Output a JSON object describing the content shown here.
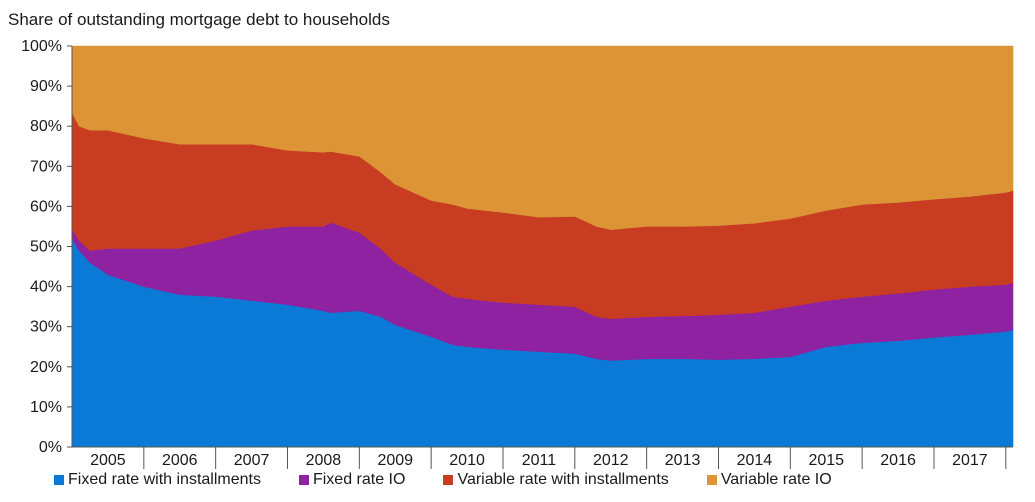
{
  "chart_data": {
    "type": "area",
    "stacked": true,
    "ylabel": "Share of outstanding mortgage debt to households",
    "xlabel": "",
    "ylim": [
      0,
      100
    ],
    "y_ticks": [
      "0%",
      "10%",
      "20%",
      "30%",
      "40%",
      "50%",
      "60%",
      "70%",
      "80%",
      "90%",
      "100%"
    ],
    "x_ticks": [
      "2005",
      "2006",
      "2007",
      "2008",
      "2009",
      "2010",
      "2011",
      "2012",
      "2013",
      "2014",
      "2015",
      "2016",
      "2017"
    ],
    "x": [
      2004.5,
      2004.6,
      2004.75,
      2005.0,
      2005.5,
      2006.0,
      2006.5,
      2007.0,
      2007.5,
      2008.0,
      2008.1,
      2008.5,
      2008.8,
      2009.0,
      2009.5,
      2009.8,
      2010.0,
      2010.5,
      2011.0,
      2011.5,
      2011.8,
      2012.0,
      2012.5,
      2013.0,
      2013.5,
      2014.0,
      2014.5,
      2015.0,
      2015.5,
      2016.0,
      2016.5,
      2017.0,
      2017.5,
      2017.6
    ],
    "grid": false,
    "legend_position": "bottom",
    "series": [
      {
        "name": "Fixed rate with installments",
        "color": "#0a7ad6",
        "values": [
          52,
          49,
          46,
          43,
          40,
          38,
          37.5,
          36.5,
          35.5,
          34,
          33.5,
          34,
          32.5,
          30.5,
          27.5,
          25.5,
          25,
          24.3,
          23.8,
          23.3,
          22,
          21.6,
          22,
          22,
          21.8,
          22,
          22.5,
          25,
          26,
          26.5,
          27.3,
          28,
          28.8,
          29.2
        ]
      },
      {
        "name": "Fixed rate IO",
        "color": "#8e22a0",
        "values": [
          2.5,
          2.5,
          3,
          6.5,
          9.5,
          11.5,
          14,
          17.5,
          19.5,
          21,
          22.5,
          19.5,
          17,
          15.5,
          13,
          12,
          12,
          11.7,
          11.7,
          11.7,
          10.5,
          10.4,
          10.5,
          10.7,
          11.2,
          11.5,
          12.5,
          11.5,
          11.5,
          11.8,
          12,
          12,
          11.7,
          11.8
        ]
      },
      {
        "name": "Variable rate with installments",
        "color": "#c83c22",
        "values": [
          29,
          28.5,
          30,
          29.5,
          27.5,
          26,
          24,
          21.5,
          19,
          18.5,
          17.7,
          19,
          19,
          19.5,
          21,
          23,
          22.5,
          22.5,
          21.8,
          22.5,
          22.5,
          22.2,
          22.5,
          22.3,
          22.2,
          22.3,
          22,
          22.5,
          23,
          22.7,
          22.5,
          22.5,
          23,
          23
        ]
      },
      {
        "name": "Variable rate IO",
        "color": "#dc9437",
        "values": [
          16.5,
          20,
          21,
          21,
          23,
          24.5,
          24.5,
          24.5,
          26,
          26.5,
          26.3,
          27.5,
          31.5,
          34.5,
          38.5,
          39.5,
          40.5,
          41.5,
          42.7,
          42.5,
          45,
          45.8,
          45,
          45,
          44.8,
          44.2,
          43,
          41,
          39.5,
          39,
          38.2,
          37.5,
          36.5,
          36
        ]
      }
    ]
  }
}
